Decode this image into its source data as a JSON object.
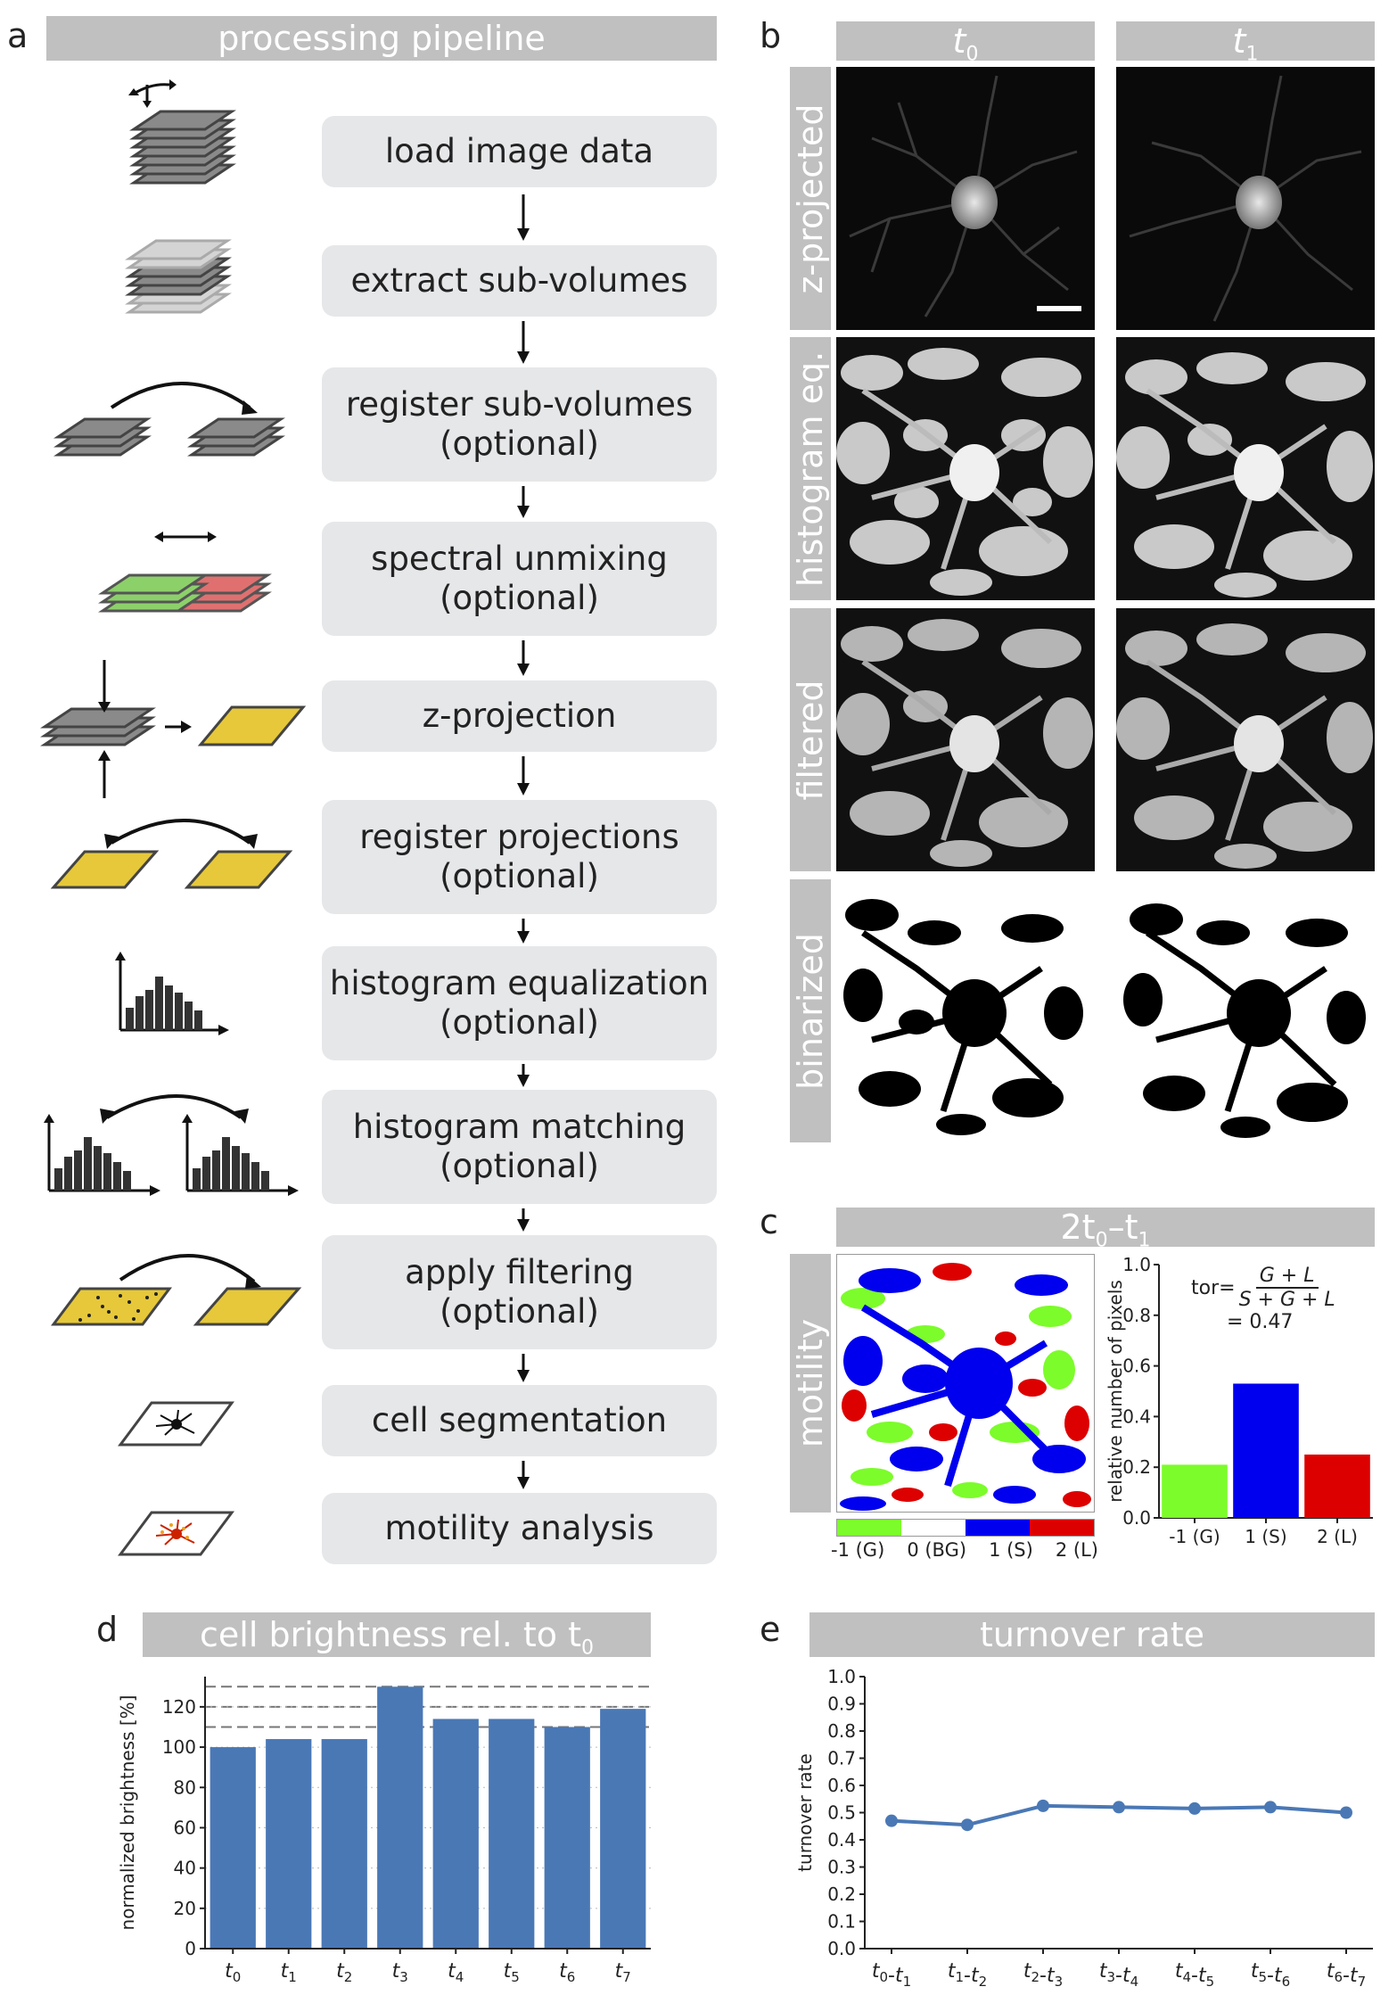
{
  "panel_a": {
    "label": "a",
    "title": "processing pipeline",
    "steps": [
      {
        "line1": "load image data",
        "line2": ""
      },
      {
        "line1": "extract sub-volumes",
        "line2": ""
      },
      {
        "line1": "register sub-volumes",
        "line2": "(optional)"
      },
      {
        "line1": "spectral unmixing",
        "line2": "(optional)"
      },
      {
        "line1": "z-projection",
        "line2": ""
      },
      {
        "line1": "register projections",
        "line2": "(optional)"
      },
      {
        "line1": "histogram equalization",
        "line2": "(optional)"
      },
      {
        "line1": "histogram matching",
        "line2": "(optional)"
      },
      {
        "line1": "apply filtering",
        "line2": "(optional)"
      },
      {
        "line1": "cell segmentation",
        "line2": ""
      },
      {
        "line1": "motility analysis",
        "line2": ""
      }
    ]
  },
  "panel_b": {
    "label": "b",
    "col_t0": "t",
    "col_t0_sub": "0",
    "col_t1": "t",
    "col_t1_sub": "1",
    "rows": [
      "z-projected",
      "histogram eq.",
      "filtered",
      "binarized"
    ]
  },
  "panel_c": {
    "label": "c",
    "title_prefix": "2t",
    "title_sub0": "0",
    "title_mid": "–t",
    "title_sub1": "1",
    "row_label": "motility",
    "colorbar_labels": [
      "-1 (G)",
      "0 (BG)",
      "1 (S)",
      "2 (L)"
    ],
    "formula_lhs": "tor=",
    "formula_num": "G + L",
    "formula_den": "S + G + L",
    "formula_value": "= 0.47",
    "colors": {
      "G": "#7cfc2a",
      "BG": "#ffffff",
      "S": "#0000ee",
      "L": "#dd0000"
    }
  },
  "panel_d": {
    "label": "d",
    "title_text": "cell brightness rel. to t",
    "title_sub": "0"
  },
  "panel_e": {
    "label": "e",
    "title": "turnover rate"
  },
  "chart_data": [
    {
      "id": "c",
      "type": "bar",
      "categories": [
        "-1 (G)",
        "1 (S)",
        "2 (L)"
      ],
      "values": [
        0.21,
        0.53,
        0.25
      ],
      "colors": [
        "#7cfc2a",
        "#0000ee",
        "#dd0000"
      ],
      "ylabel": "relative number of pixels",
      "ylim": [
        0,
        1.0
      ],
      "yticks": [
        "0.0",
        "0.2",
        "0.4",
        "0.6",
        "0.8",
        "1.0"
      ]
    },
    {
      "id": "d",
      "type": "bar",
      "categories": [
        "t0",
        "t1",
        "t2",
        "t3",
        "t4",
        "t5",
        "t6",
        "t7"
      ],
      "values": [
        100,
        104,
        104,
        130,
        114,
        114,
        110,
        119
      ],
      "color": "#4a78b5",
      "ylabel": "normalized brightness [%]",
      "ylim": [
        0,
        135
      ],
      "yticks": [
        "0",
        "20",
        "40",
        "60",
        "80",
        "100",
        "120"
      ],
      "reference_lines": [
        110,
        120,
        130
      ]
    },
    {
      "id": "e",
      "type": "line",
      "categories": [
        "t0-t1",
        "t1-t2",
        "t2-t3",
        "t3-t4",
        "t4-t5",
        "t5-t6",
        "t6-t7"
      ],
      "values": [
        0.47,
        0.455,
        0.525,
        0.52,
        0.515,
        0.52,
        0.5
      ],
      "color": "#4a78b5",
      "ylabel": "turnover rate",
      "ylim": [
        0,
        1.0
      ],
      "yticks": [
        "0.0",
        "0.1",
        "0.2",
        "0.3",
        "0.4",
        "0.5",
        "0.6",
        "0.7",
        "0.8",
        "0.9",
        "1.0"
      ]
    }
  ]
}
